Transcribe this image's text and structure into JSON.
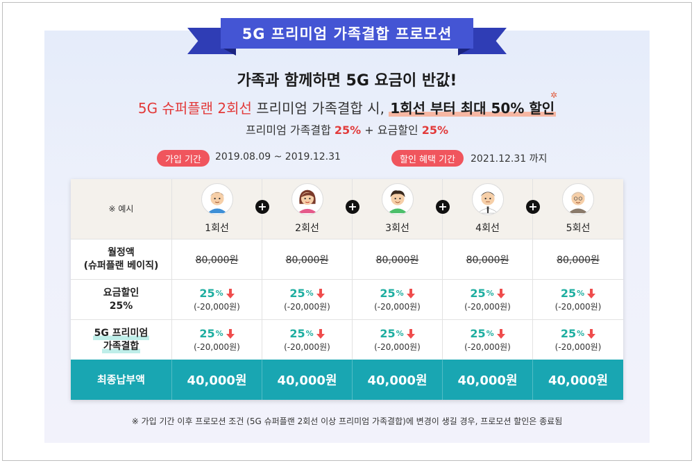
{
  "banner": {
    "title": "5G 프리미엄 가족결합 프로모션"
  },
  "headline": "가족과 함께하면 5G 요금이 반값!",
  "promo": {
    "part1": "5G 슈퍼플랜 2회선",
    "part2": " 프리미엄 가족결합 시, ",
    "part3": "1회선 부터 최대 50% 할인"
  },
  "subline": {
    "part1": "프리미엄 가족결합 ",
    "part2": "25%",
    "part3": " + 요금할인 ",
    "part4": "25%"
  },
  "periods": {
    "join_label": "가입 기간",
    "join_value": "2019.08.09 ~ 2019.12.31",
    "benefit_label": "할인 혜택 기간",
    "benefit_value": "2021.12.31 까지"
  },
  "table": {
    "example_label": "※ 예시",
    "lines": [
      "1회선",
      "2회선",
      "3회선",
      "4회선",
      "5회선"
    ],
    "plus_symbol": "+",
    "monthly": {
      "label1": "월정액",
      "label2": "(슈퍼플랜 베이직)",
      "values": [
        "80,000원",
        "80,000원",
        "80,000원",
        "80,000원",
        "80,000원"
      ]
    },
    "rate_discount": {
      "label1": "요금할인",
      "label2": "25%",
      "pct": "25",
      "unit": "%",
      "amounts": [
        "(-20,000원)",
        "(-20,000원)",
        "(-20,000원)",
        "(-20,000원)",
        "(-20,000원)"
      ]
    },
    "family_discount": {
      "label1": "5G 프리미엄",
      "label2": "가족결합",
      "pct": "25",
      "unit": "%",
      "amounts": [
        "(-20,000원)",
        "(-20,000원)",
        "(-20,000원)",
        "(-20,000원)",
        "(-20,000원)"
      ]
    },
    "final": {
      "label": "최종납부액",
      "values": [
        "40,000원",
        "40,000원",
        "40,000원",
        "40,000원",
        "40,000원"
      ]
    }
  },
  "footnote": "※ 가입 기간 이후 프로모션 조건 (5G 슈퍼플랜 2회선 이상 프리미엄 가족결합)에 변경이 생길 경우, 프로모션 할인은 종료됨",
  "colors": {
    "ribbon": "#4455d4",
    "accent_red": "#e23a3a",
    "teal": "#19a6b2",
    "pill": "#f0555d"
  }
}
